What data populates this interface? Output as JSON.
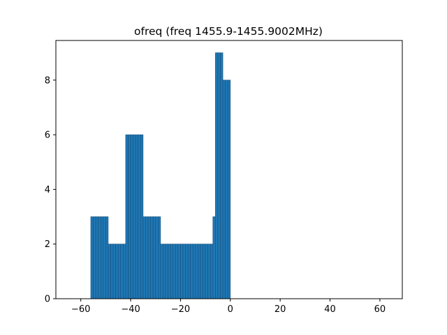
{
  "chart_data": {
    "type": "bar",
    "title": "ofreq (freq 1455.9-1455.9002MHz)",
    "xlabel": "",
    "ylabel": "",
    "xlim": [
      -70,
      69
    ],
    "ylim": [
      0,
      9.45
    ],
    "xticks": [
      -60,
      -40,
      -20,
      0,
      20,
      40,
      60
    ],
    "yticks": [
      0,
      2,
      4,
      6,
      8
    ],
    "bin_width": 1,
    "bar_color": "#1f77b4",
    "edge_color": "#15507c",
    "bars": [
      {
        "x": -55.5,
        "value": 3
      },
      {
        "x": -54.5,
        "value": 3
      },
      {
        "x": -53.5,
        "value": 3
      },
      {
        "x": -52.5,
        "value": 3
      },
      {
        "x": -51.5,
        "value": 3
      },
      {
        "x": -50.5,
        "value": 3
      },
      {
        "x": -49.5,
        "value": 3
      },
      {
        "x": -48.5,
        "value": 2
      },
      {
        "x": -47.5,
        "value": 2
      },
      {
        "x": -46.5,
        "value": 2
      },
      {
        "x": -45.5,
        "value": 2
      },
      {
        "x": -44.5,
        "value": 2
      },
      {
        "x": -43.5,
        "value": 2
      },
      {
        "x": -42.5,
        "value": 2
      },
      {
        "x": -41.5,
        "value": 6
      },
      {
        "x": -40.5,
        "value": 6
      },
      {
        "x": -39.5,
        "value": 6
      },
      {
        "x": -38.5,
        "value": 6
      },
      {
        "x": -37.5,
        "value": 6
      },
      {
        "x": -36.5,
        "value": 6
      },
      {
        "x": -35.5,
        "value": 6
      },
      {
        "x": -34.5,
        "value": 3
      },
      {
        "x": -33.5,
        "value": 3
      },
      {
        "x": -32.5,
        "value": 3
      },
      {
        "x": -31.5,
        "value": 3
      },
      {
        "x": -30.5,
        "value": 3
      },
      {
        "x": -29.5,
        "value": 3
      },
      {
        "x": -28.5,
        "value": 3
      },
      {
        "x": -27.5,
        "value": 2
      },
      {
        "x": -26.5,
        "value": 2
      },
      {
        "x": -25.5,
        "value": 2
      },
      {
        "x": -24.5,
        "value": 2
      },
      {
        "x": -23.5,
        "value": 2
      },
      {
        "x": -22.5,
        "value": 2
      },
      {
        "x": -21.5,
        "value": 2
      },
      {
        "x": -20.5,
        "value": 2
      },
      {
        "x": -19.5,
        "value": 2
      },
      {
        "x": -18.5,
        "value": 2
      },
      {
        "x": -17.5,
        "value": 2
      },
      {
        "x": -16.5,
        "value": 2
      },
      {
        "x": -15.5,
        "value": 2
      },
      {
        "x": -14.5,
        "value": 2
      },
      {
        "x": -13.5,
        "value": 2
      },
      {
        "x": -12.5,
        "value": 2
      },
      {
        "x": -11.5,
        "value": 2
      },
      {
        "x": -10.5,
        "value": 2
      },
      {
        "x": -9.5,
        "value": 2
      },
      {
        "x": -8.5,
        "value": 2
      },
      {
        "x": -7.5,
        "value": 2
      },
      {
        "x": -6.5,
        "value": 3
      },
      {
        "x": -5.5,
        "value": 9
      },
      {
        "x": -4.5,
        "value": 9
      },
      {
        "x": -3.5,
        "value": 9
      },
      {
        "x": -2.5,
        "value": 8
      },
      {
        "x": -1.5,
        "value": 8
      },
      {
        "x": -0.5,
        "value": 8
      }
    ]
  }
}
